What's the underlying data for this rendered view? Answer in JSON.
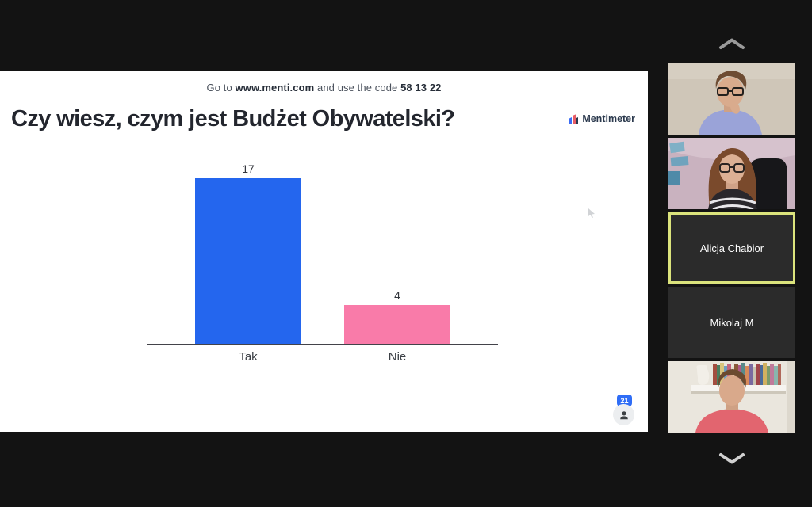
{
  "screen_share": {
    "join_bar": {
      "prefix": "Go to ",
      "url": "www.menti.com",
      "middle": " and use the code ",
      "code": "58 13 22"
    },
    "question": "Czy wiesz, czym jest Budżet Obywatelski?",
    "brand_name": "Mentimeter",
    "participant_count": "21"
  },
  "sidebar": {
    "participants": [
      {
        "name": "",
        "video": true
      },
      {
        "name": "",
        "video": true
      },
      {
        "name": "Alicja Chabior",
        "video": false,
        "active_speaker": true
      },
      {
        "name": "Mikolaj M",
        "video": false
      },
      {
        "name": "",
        "video": true
      }
    ]
  },
  "chart_data": {
    "type": "bar",
    "title": "Czy wiesz, czym jest Budżet Obywatelski?",
    "categories": [
      "Tak",
      "Nie"
    ],
    "values": [
      17,
      4
    ],
    "colors": [
      "#2466ee",
      "#f97ba9"
    ],
    "ylim": [
      0,
      17
    ],
    "grid": false,
    "legend": "none",
    "value_labels": true
  },
  "colors": {
    "accent_blue": "#2466ee",
    "accent_pink": "#f97ba9",
    "active_speaker_border": "#dbe37c",
    "count_badge_blue": "#2f6df6"
  }
}
